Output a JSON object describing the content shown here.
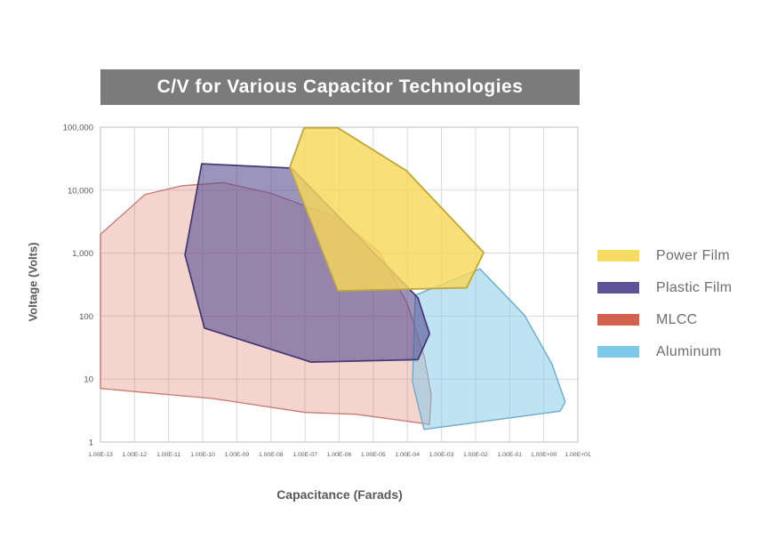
{
  "title_banner": {
    "bg_color": "#7b7b7b",
    "text_color": "#ffffff"
  },
  "chart_data": {
    "type": "area",
    "title": "C/V for Various Capacitor Technologies",
    "xlabel": "Capacitance (Farads)",
    "ylabel": "Voltage (Volts)",
    "x_scale": "log",
    "y_scale": "log",
    "xlim_log10_farads": [
      -13,
      1
    ],
    "ylim_log10_volts": [
      0,
      5
    ],
    "grid": true,
    "grid_color": "#dadada",
    "border_color": "#c9c9c9",
    "tick_color": "#58595b",
    "x_ticks": [
      "1.00E-13",
      "1.00E-12",
      "1.00E-11",
      "1.00E-10",
      "1.00E-09",
      "1.00E-08",
      "1.00E-07",
      "1.00E-06",
      "1.00E-05",
      "1.00E-04",
      "1.00E-03",
      "1.00E-02",
      "1.00E-01",
      "1.00E+00",
      "1.00E+01"
    ],
    "y_ticks": [
      "100,000",
      "10,000",
      "1,000",
      "100",
      "10",
      "1"
    ],
    "legend_position": "right",
    "draw_order": [
      "MLCC",
      "Aluminum",
      "Plastic Film",
      "Power Film"
    ],
    "series": [
      {
        "name": "Power Film",
        "legend_color": "#f8db63",
        "fill": "rgba(247,216,90,0.82)",
        "stroke": "#bca63e",
        "stroke_width": 1.8,
        "points_log10_capacitance_voltage": [
          [
            -7.03,
            4.99
          ],
          [
            -6.04,
            4.99
          ],
          [
            -4.03,
            4.31
          ],
          [
            -1.76,
            3.01
          ],
          [
            -2.26,
            2.45
          ],
          [
            -6.04,
            2.4
          ],
          [
            -7.45,
            4.36
          ]
        ]
      },
      {
        "name": "Plastic Film",
        "legend_color": "#5d5496",
        "fill": "rgba(88,79,145,0.60)",
        "stroke": "#453d78",
        "stroke_width": 1.8,
        "points_log10_capacitance_voltage": [
          [
            -10.03,
            4.42
          ],
          [
            -7.4,
            4.35
          ],
          [
            -3.69,
            2.29
          ],
          [
            -3.35,
            1.72
          ],
          [
            -3.69,
            1.31
          ],
          [
            -6.82,
            1.27
          ],
          [
            -9.95,
            1.81
          ],
          [
            -10.52,
            2.97
          ]
        ]
      },
      {
        "name": "MLCC",
        "legend_color": "#d4604f",
        "fill": "rgba(213,95,78,0.27)",
        "stroke": "rgba(196,100,88,0.85)",
        "stroke_width": 1.3,
        "points_log10_capacitance_voltage": [
          [
            -13,
            3.3
          ],
          [
            -11.7,
            3.93
          ],
          [
            -10.6,
            4.07
          ],
          [
            -9.4,
            4.12
          ],
          [
            -8.0,
            3.95
          ],
          [
            -6.0,
            3.55
          ],
          [
            -4.8,
            3.0
          ],
          [
            -4.0,
            2.2
          ],
          [
            -3.5,
            1.35
          ],
          [
            -3.3,
            0.75
          ],
          [
            -3.35,
            0.28
          ],
          [
            -4.0,
            0.33
          ],
          [
            -5.5,
            0.44
          ],
          [
            -7.0,
            0.47
          ],
          [
            -9.7,
            0.69
          ],
          [
            -13,
            0.85
          ]
        ]
      },
      {
        "name": "Aluminum",
        "legend_color": "#7ec8e8",
        "fill": "rgba(126,200,232,0.50)",
        "stroke": "#74aecd",
        "stroke_width": 1.5,
        "points_log10_capacitance_voltage": [
          [
            -1.87,
            2.75
          ],
          [
            -0.56,
            2.01
          ],
          [
            0.24,
            1.24
          ],
          [
            0.63,
            0.64
          ],
          [
            0.48,
            0.49
          ],
          [
            -3.51,
            0.2
          ],
          [
            -3.85,
            0.95
          ],
          [
            -3.77,
            2.33
          ]
        ]
      }
    ]
  },
  "legend": {
    "items": [
      {
        "label": "Power Film",
        "color": "#f8db63"
      },
      {
        "label": "Plastic Film",
        "color": "#5d5496"
      },
      {
        "label": "MLCC",
        "color": "#d4604f"
      },
      {
        "label": "Aluminum",
        "color": "#7ec8e8"
      }
    ]
  }
}
